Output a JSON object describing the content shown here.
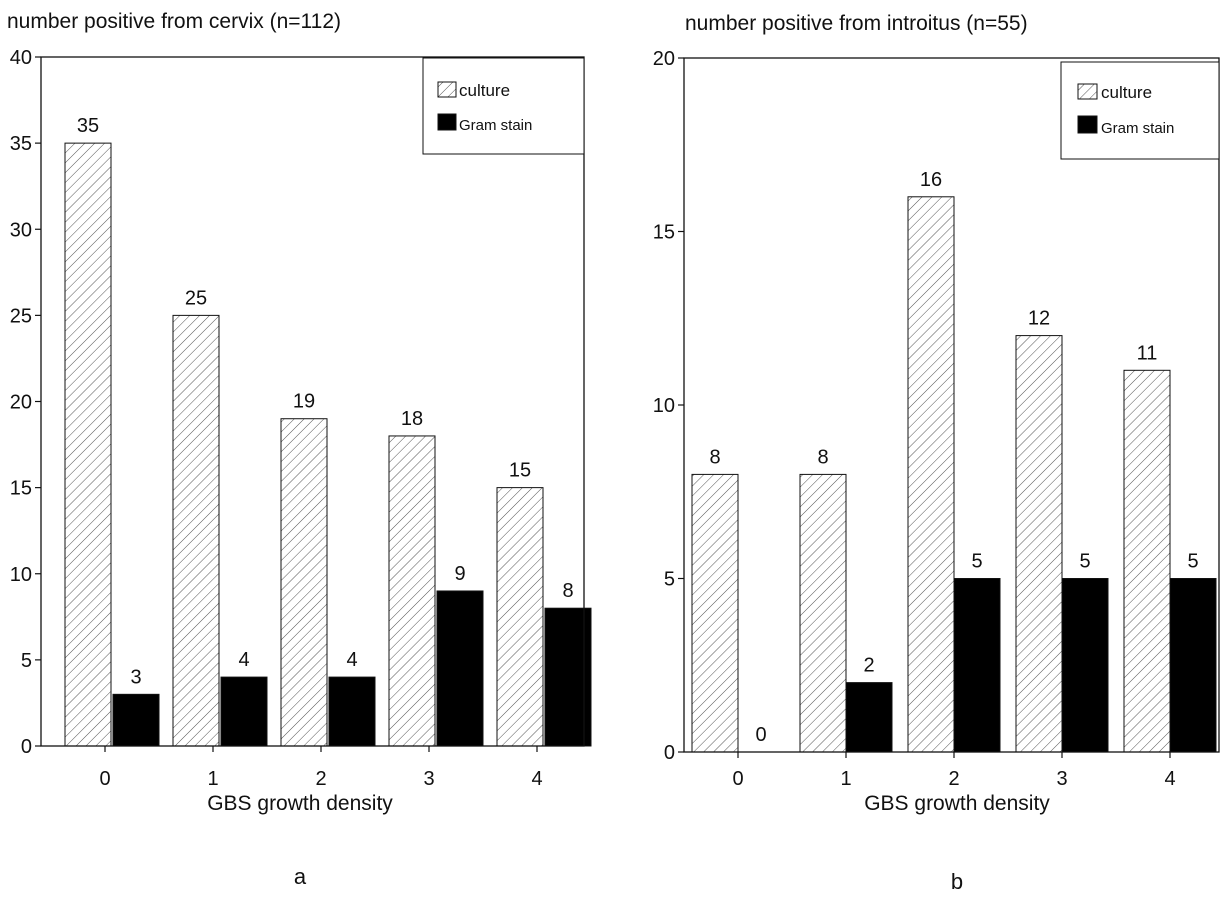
{
  "chart_data": [
    {
      "panel_label": "a",
      "type": "bar",
      "title": "number positive from cervix (n=112)",
      "xlabel": "GBS growth density",
      "ylabel": "",
      "categories": [
        "0",
        "1",
        "2",
        "3",
        "4"
      ],
      "series": [
        {
          "name": "culture",
          "values": [
            35,
            25,
            19,
            18,
            15
          ]
        },
        {
          "name": "Gram stain",
          "values": [
            3,
            4,
            4,
            9,
            8
          ]
        }
      ],
      "ylim": [
        0,
        40
      ],
      "yticks": [
        0,
        5,
        10,
        15,
        20,
        25,
        30,
        35,
        40
      ],
      "legend_position": "top-right",
      "grid": false
    },
    {
      "panel_label": "b",
      "type": "bar",
      "title": "number positive from introitus (n=55)",
      "xlabel": "GBS growth density",
      "ylabel": "",
      "categories": [
        "0",
        "1",
        "2",
        "3",
        "4"
      ],
      "series": [
        {
          "name": "culture",
          "values": [
            8,
            8,
            16,
            12,
            11
          ]
        },
        {
          "name": "Gram stain",
          "values": [
            0,
            2,
            5,
            5,
            5
          ]
        }
      ],
      "ylim": [
        0,
        20
      ],
      "yticks": [
        0,
        5,
        10,
        15,
        20
      ],
      "legend_position": "top-right",
      "grid": false
    }
  ],
  "colors": {
    "culture_fill": "#ffffff",
    "culture_hatch": "#555555",
    "gram_stain_fill": "#000000",
    "axis": "#111111"
  }
}
